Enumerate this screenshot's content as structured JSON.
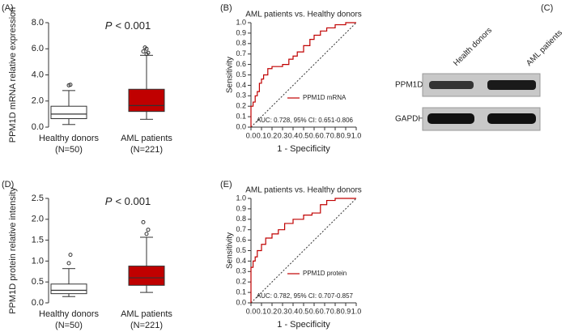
{
  "chart_data": [
    {
      "type": "box",
      "panel": "(A)",
      "ylabel": "PPM1D mRNA relative expression",
      "annotation_symbol": "P",
      "annotation": "< 0.001",
      "categories": [
        "Healthy donors",
        "AML patients"
      ],
      "category_counts": [
        "(N=50)",
        "(N=221)"
      ],
      "colors": [
        "#ffffff",
        "#c00000"
      ],
      "boxes": [
        {
          "whislo": 0.2,
          "q1": 0.65,
          "med": 1.0,
          "q3": 1.6,
          "whishi": 2.8,
          "fliers": [
            3.2,
            3.25
          ]
        },
        {
          "whislo": 0.6,
          "q1": 1.2,
          "med": 1.65,
          "q3": 2.9,
          "whishi": 5.5,
          "fliers": [
            5.6,
            5.7,
            5.8,
            6.0,
            6.1
          ]
        }
      ],
      "ylim": [
        0,
        8
      ],
      "yticks": [
        {
          "value": 0,
          "label": "0.0"
        },
        {
          "value": 2,
          "label": "2.0"
        },
        {
          "value": 4,
          "label": "4.0"
        },
        {
          "value": 6,
          "label": "6.0"
        },
        {
          "value": 8,
          "label": "8.0"
        }
      ]
    },
    {
      "type": "line",
      "panel": "(B)",
      "title": "AML patients vs. Healthy donors",
      "xlabel": "1 - Specificity",
      "ylabel": "Sensitivity",
      "annotation": "AUC: 0.728, 95%  CI: 0.651-0.806",
      "x": [
        0,
        0,
        0.02,
        0.02,
        0.04,
        0.04,
        0.06,
        0.06,
        0.08,
        0.08,
        0.1,
        0.1,
        0.12,
        0.12,
        0.16,
        0.16,
        0.2,
        0.2,
        0.3,
        0.3,
        0.36,
        0.36,
        0.4,
        0.4,
        0.44,
        0.44,
        0.5,
        0.5,
        0.56,
        0.56,
        0.6,
        0.6,
        0.66,
        0.66,
        0.72,
        0.72,
        0.8,
        0.8,
        0.9,
        0.9,
        1
      ],
      "series": [
        {
          "name": "PPM1D mRNA",
          "color": "#c00000",
          "values": [
            0,
            0.2,
            0.2,
            0.24,
            0.24,
            0.3,
            0.3,
            0.34,
            0.34,
            0.42,
            0.42,
            0.46,
            0.46,
            0.5,
            0.5,
            0.56,
            0.56,
            0.58,
            0.58,
            0.6,
            0.6,
            0.65,
            0.65,
            0.68,
            0.68,
            0.72,
            0.72,
            0.78,
            0.78,
            0.84,
            0.84,
            0.88,
            0.88,
            0.92,
            0.92,
            0.95,
            0.95,
            0.98,
            0.98,
            1,
            1
          ]
        }
      ],
      "xlim": [
        0,
        1
      ],
      "ylim": [
        0,
        1
      ],
      "xticks": [
        {
          "value": 0,
          "label": "0.0"
        },
        {
          "value": 0.1,
          "label": "0.1"
        },
        {
          "value": 0.2,
          "label": "0.2"
        },
        {
          "value": 0.3,
          "label": "0.3"
        },
        {
          "value": 0.4,
          "label": "0.4"
        },
        {
          "value": 0.5,
          "label": "0.5"
        },
        {
          "value": 0.6,
          "label": "0.6"
        },
        {
          "value": 0.7,
          "label": "0.7"
        },
        {
          "value": 0.8,
          "label": "0.8"
        },
        {
          "value": 0.9,
          "label": "0.9"
        },
        {
          "value": 1,
          "label": "1.0"
        }
      ],
      "yticks": [
        {
          "value": 0,
          "label": "0.0"
        },
        {
          "value": 0.1,
          "label": "0.1"
        },
        {
          "value": 0.2,
          "label": "0.2"
        },
        {
          "value": 0.3,
          "label": "0.3"
        },
        {
          "value": 0.4,
          "label": "0.4"
        },
        {
          "value": 0.5,
          "label": "0.5"
        },
        {
          "value": 0.6,
          "label": "0.6"
        },
        {
          "value": 0.7,
          "label": "0.7"
        },
        {
          "value": 0.8,
          "label": "0.8"
        },
        {
          "value": 0.9,
          "label": "0.9"
        },
        {
          "value": 1,
          "label": "1.0"
        }
      ]
    },
    {
      "type": "box",
      "panel": "(D)",
      "ylabel": "PPM1D protein relative intensity",
      "annotation_symbol": "P",
      "annotation": "< 0.001",
      "categories": [
        "Healthy donors",
        "AML patients"
      ],
      "category_counts": [
        "(N=50)",
        "(N=221)"
      ],
      "colors": [
        "#ffffff",
        "#c00000"
      ],
      "boxes": [
        {
          "whislo": 0.15,
          "q1": 0.22,
          "med": 0.3,
          "q3": 0.45,
          "whishi": 0.82,
          "fliers": [
            0.95,
            1.15
          ]
        },
        {
          "whislo": 0.25,
          "q1": 0.42,
          "med": 0.6,
          "q3": 0.88,
          "whishi": 1.57,
          "fliers": [
            1.65,
            1.75,
            1.93
          ]
        }
      ],
      "ylim": [
        0,
        2.5
      ],
      "yticks": [
        {
          "value": 0,
          "label": "0.0"
        },
        {
          "value": 0.5,
          "label": "0.5"
        },
        {
          "value": 1,
          "label": "1.0"
        },
        {
          "value": 1.5,
          "label": "1.5"
        },
        {
          "value": 2,
          "label": "2.0"
        },
        {
          "value": 2.5,
          "label": "2.5"
        }
      ]
    },
    {
      "type": "line",
      "panel": "(E)",
      "title": "AML patients vs. Healthy donors",
      "xlabel": "1 - Specificity",
      "ylabel": "Sensitivity",
      "annotation": "AUC: 0.782, 95%  CI: 0.707-0.857",
      "x": [
        0,
        0,
        0.02,
        0.02,
        0.04,
        0.04,
        0.06,
        0.06,
        0.1,
        0.1,
        0.14,
        0.14,
        0.2,
        0.2,
        0.26,
        0.26,
        0.32,
        0.32,
        0.4,
        0.4,
        0.5,
        0.5,
        0.58,
        0.58,
        0.66,
        0.66,
        0.72,
        0.72,
        0.8,
        0.8,
        1
      ],
      "series": [
        {
          "name": "PPM1D protein",
          "color": "#c00000",
          "values": [
            0,
            0.34,
            0.34,
            0.4,
            0.4,
            0.44,
            0.44,
            0.5,
            0.5,
            0.56,
            0.56,
            0.62,
            0.62,
            0.66,
            0.66,
            0.7,
            0.7,
            0.76,
            0.76,
            0.8,
            0.8,
            0.84,
            0.84,
            0.86,
            0.86,
            0.94,
            0.94,
            0.98,
            0.98,
            1,
            1
          ]
        }
      ],
      "xlim": [
        0,
        1
      ],
      "ylim": [
        0,
        1
      ],
      "xticks": [
        {
          "value": 0,
          "label": "0.0"
        },
        {
          "value": 0.1,
          "label": "0.1"
        },
        {
          "value": 0.2,
          "label": "0.2"
        },
        {
          "value": 0.3,
          "label": "0.3"
        },
        {
          "value": 0.4,
          "label": "0.4"
        },
        {
          "value": 0.5,
          "label": "0.5"
        },
        {
          "value": 0.6,
          "label": "0.6"
        },
        {
          "value": 0.7,
          "label": "0.7"
        },
        {
          "value": 0.8,
          "label": "0.8"
        },
        {
          "value": 0.9,
          "label": "0.9"
        },
        {
          "value": 1,
          "label": "1.0"
        }
      ],
      "yticks": [
        {
          "value": 0,
          "label": "0.0"
        },
        {
          "value": 0.1,
          "label": "0.1"
        },
        {
          "value": 0.2,
          "label": "0.2"
        },
        {
          "value": 0.3,
          "label": "0.3"
        },
        {
          "value": 0.4,
          "label": "0.4"
        },
        {
          "value": 0.5,
          "label": "0.5"
        },
        {
          "value": 0.6,
          "label": "0.6"
        },
        {
          "value": 0.7,
          "label": "0.7"
        },
        {
          "value": 0.8,
          "label": "0.8"
        },
        {
          "value": 0.9,
          "label": "0.9"
        },
        {
          "value": 1,
          "label": "1.0"
        }
      ]
    }
  ],
  "blot": {
    "panel": "(C)",
    "columns": [
      "Health donors",
      "AML patients"
    ],
    "rows": [
      "PPM1D",
      "GAPDH"
    ]
  }
}
